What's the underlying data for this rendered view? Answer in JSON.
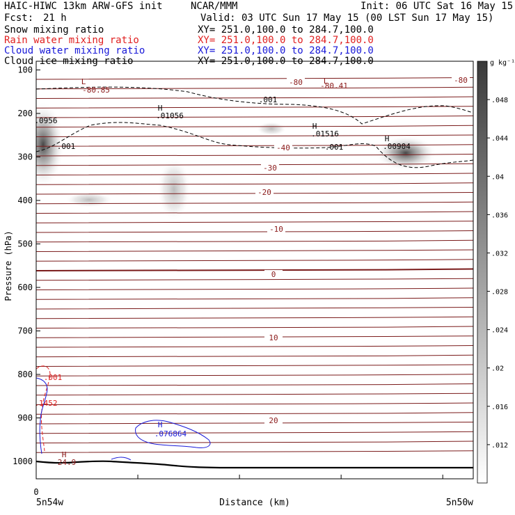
{
  "header": {
    "model": "HAIC-HIWC 13km ARW-GFS init",
    "org": "NCAR/MMM",
    "init": "Init: 06 UTC Sat 16 May 15",
    "fcst_label": "Fcst:",
    "fcst_value": "21 h",
    "valid": "Valid: 03 UTC Sun 17 May 15 (00 LST Sun 17 May 15)",
    "fields": [
      {
        "name": "Snow mixing ratio",
        "xy": "XY= 251.0,100.0 to 284.7,100.0",
        "color": "#000000"
      },
      {
        "name": "Rain water mixing ratio",
        "xy": "XY= 251.0,100.0 to 284.7,100.0",
        "color": "#e02020"
      },
      {
        "name": "Cloud water mixing ratio",
        "xy": "XY= 251.0,100.0 to 284.7,100.0",
        "color": "#1818d8"
      },
      {
        "name": "Cloud ice mixing ratio",
        "xy": "XY= 251.0,100.0 to 284.7,100.0",
        "color": "#000000"
      }
    ]
  },
  "chart_data": {
    "type": "heatmap",
    "xlabel": "Distance (km)",
    "ylabel": "Pressure (hPa)",
    "x_start_label": "5n54w",
    "x_end_label": "5n50w",
    "x_zero_label": "0",
    "y_ticks": [
      100,
      200,
      300,
      400,
      500,
      600,
      700,
      800,
      900,
      1000
    ],
    "ylim": [
      80,
      1040
    ],
    "colorbar": {
      "unit": "g kg⁻¹",
      "ticks": [
        ".012",
        ".016",
        ".02",
        ".024",
        ".028",
        ".032",
        ".036",
        ".04",
        ".044",
        ".048"
      ]
    },
    "temperature_contours": [
      {
        "value": -80,
        "labels": [
          "-80",
          "-80"
        ]
      },
      {
        "value": -40,
        "labels": [
          "-40"
        ]
      },
      {
        "value": -30,
        "labels": [
          "-30"
        ]
      },
      {
        "value": -20,
        "labels": [
          "-20"
        ]
      },
      {
        "value": -10,
        "labels": [
          "-10"
        ]
      },
      {
        "value": 0,
        "labels": [
          "0"
        ]
      },
      {
        "value": 10,
        "labels": [
          "10"
        ]
      },
      {
        "value": 20,
        "labels": [
          "20"
        ]
      }
    ],
    "annotations": [
      {
        "text": "L",
        "color": "#8b1a1a"
      },
      {
        "text": "-80.85",
        "color": "#8b1a1a"
      },
      {
        "text": "L",
        "color": "#8b1a1a"
      },
      {
        "text": "-80.41",
        "color": "#8b1a1a"
      },
      {
        "text": ".001",
        "color": "#000000"
      },
      {
        "text": ".001",
        "color": "#000000"
      },
      {
        "text": ".001",
        "color": "#000000"
      },
      {
        "text": "H",
        "color": "#000000"
      },
      {
        "text": ".01056",
        "color": "#000000"
      },
      {
        "text": "H",
        "color": "#000000"
      },
      {
        "text": ".01516",
        "color": "#000000"
      },
      {
        "text": "H",
        "color": "#000000"
      },
      {
        "text": ".00904",
        "color": "#000000"
      },
      {
        "text": ".0956",
        "color": "#000000"
      },
      {
        "text": ".001",
        "color": "#e02020"
      },
      {
        "text": ".1452",
        "color": "#e02020"
      },
      {
        "text": "H",
        "color": "#1818d8"
      },
      {
        "text": ".076864",
        "color": "#1818d8"
      },
      {
        "text": "H",
        "color": "#8b1a1a"
      },
      {
        "text": "24.9",
        "color": "#8b1a1a"
      }
    ]
  }
}
